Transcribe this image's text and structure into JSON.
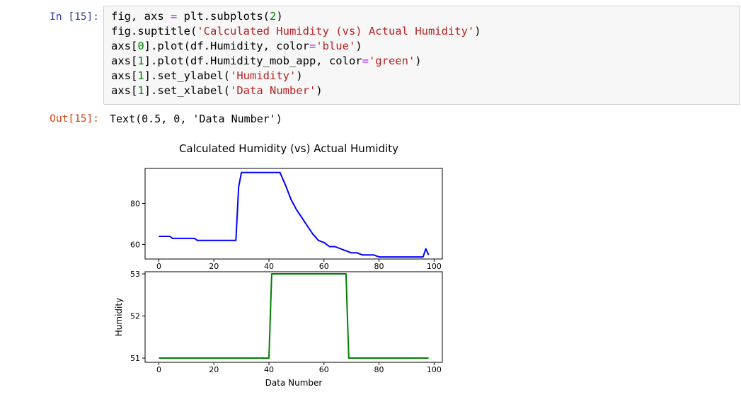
{
  "cell": {
    "in_prompt": "In [15]:",
    "out_prompt": "Out[15]:",
    "output_text": "Text(0.5, 0, 'Data Number')",
    "code": {
      "l1": {
        "a": "fig, axs ",
        "op": "=",
        "b": " plt.subplots(",
        "n": "2",
        "c": ")"
      },
      "l2": {
        "a": "fig.suptitle(",
        "s": "'Calculated Humidity (vs) Actual Humidity'",
        "c": ")"
      },
      "l3": {
        "a": "axs[",
        "n": "0",
        "b": "].plot(df.Humidity, color",
        "op": "=",
        "s": "'blue'",
        "c": ")"
      },
      "l4": {
        "a": "axs[",
        "n": "1",
        "b": "].plot(df.Humidity_mob_app, color",
        "op": "=",
        "s": "'green'",
        "c": ")"
      },
      "l5": {
        "a": "axs[",
        "n": "1",
        "b": "].set_ylabel(",
        "s": "'Humidity'",
        "c": ")"
      },
      "l6": {
        "a": "axs[",
        "n": "1",
        "b": "].set_xlabel(",
        "s": "'Data Number'",
        "c": ")"
      }
    }
  },
  "colors": {
    "series1": "#0000ff",
    "series2": "#008000"
  },
  "chart_data": [
    {
      "type": "line",
      "title": "Calculated Humidity (vs) Actual Humidity",
      "xlabel": "",
      "ylabel": "",
      "xlim": [
        -5,
        103
      ],
      "ylim": [
        53,
        97
      ],
      "xticks": [
        "0",
        "20",
        "40",
        "60",
        "80",
        "100"
      ],
      "yticks": [
        "60",
        "80"
      ],
      "grid": false,
      "series": [
        {
          "color": "blue",
          "x": [
            0,
            4,
            5,
            13,
            14,
            28,
            29,
            30,
            44,
            46,
            48,
            50,
            52,
            54,
            56,
            58,
            60,
            62,
            64,
            66,
            68,
            70,
            72,
            74,
            76,
            78,
            80,
            82,
            84,
            86,
            88,
            90,
            92,
            94,
            96,
            97,
            98
          ],
          "y": [
            64,
            64,
            63,
            63,
            62,
            62,
            88,
            95,
            95,
            89,
            82,
            77,
            73,
            69,
            65,
            62,
            61,
            59,
            59,
            58,
            57,
            56,
            56,
            55,
            55,
            55,
            54,
            54,
            54,
            54,
            54,
            54,
            54,
            54,
            54,
            58,
            55
          ]
        }
      ]
    },
    {
      "type": "line",
      "title": "",
      "xlabel": "Data Number",
      "ylabel": "Humidity",
      "xlim": [
        -5,
        103
      ],
      "ylim": [
        50.9,
        53.05
      ],
      "xticks": [
        "0",
        "20",
        "40",
        "60",
        "80",
        "100"
      ],
      "yticks": [
        "51",
        "52",
        "53"
      ],
      "grid": false,
      "series": [
        {
          "color": "green",
          "x": [
            0,
            40,
            41,
            68,
            69,
            98
          ],
          "y": [
            51,
            51,
            53,
            53,
            51,
            51
          ]
        }
      ]
    }
  ]
}
